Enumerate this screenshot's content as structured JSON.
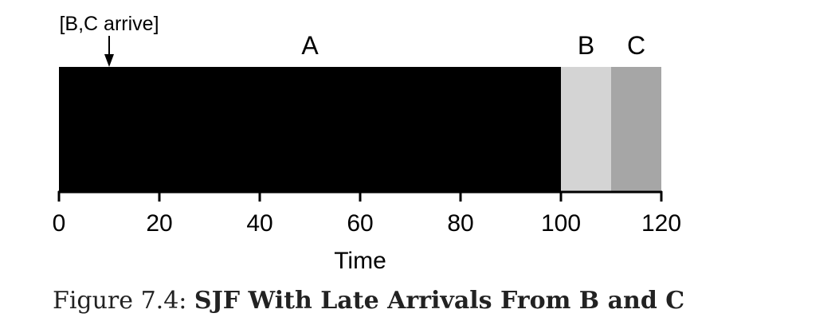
{
  "chart_data": {
    "type": "bar",
    "orientation": "horizontal",
    "xlabel": "Time",
    "xlim": [
      0,
      120
    ],
    "xticks": [
      0,
      20,
      40,
      60,
      80,
      100,
      120
    ],
    "grid": false,
    "segments": [
      {
        "label": "A",
        "start": 0,
        "end": 100,
        "color": "#000000"
      },
      {
        "label": "B",
        "start": 100,
        "end": 110,
        "color": "#d4d4d4"
      },
      {
        "label": "C",
        "start": 110,
        "end": 120,
        "color": "#a6a6a6"
      }
    ],
    "annotations": [
      {
        "text": "[B,C arrive]",
        "x": 10
      }
    ]
  },
  "caption": {
    "prefix": "Figure 7.4: ",
    "title": "SJF With Late Arrivals From B and C"
  }
}
